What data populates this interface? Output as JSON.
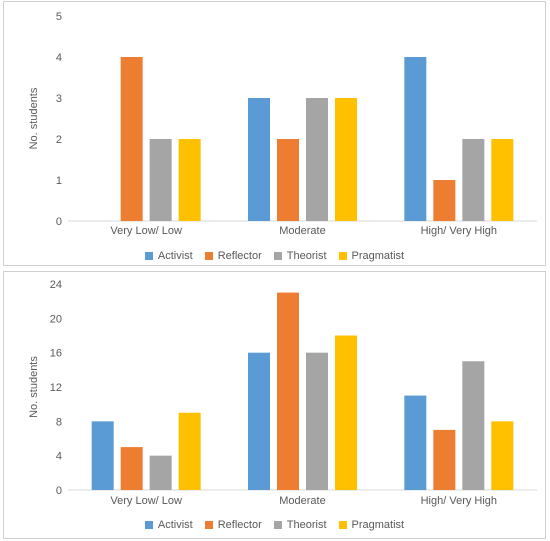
{
  "chart_data": [
    {
      "type": "bar",
      "ylabel": "No. students",
      "xlabel": "",
      "categories": [
        "Very Low/ Low",
        "Moderate",
        "High/ Very High"
      ],
      "ylim": [
        0,
        5
      ],
      "yticks": [
        0,
        1,
        2,
        3,
        4,
        5
      ],
      "grid": false,
      "legend": "bottom",
      "series": [
        {
          "name": "Activist",
          "values": [
            0,
            3,
            4
          ]
        },
        {
          "name": "Reflector",
          "values": [
            4,
            2,
            1
          ]
        },
        {
          "name": "Theorist",
          "values": [
            2,
            3,
            2
          ]
        },
        {
          "name": "Pragmatist",
          "values": [
            2,
            3,
            2
          ]
        }
      ]
    },
    {
      "type": "bar",
      "ylabel": "No. students",
      "xlabel": "",
      "categories": [
        "Very Low/ Low",
        "Moderate",
        "High/ Very High"
      ],
      "ylim": [
        0,
        24
      ],
      "yticks": [
        0,
        4,
        8,
        12,
        16,
        20,
        24
      ],
      "grid": false,
      "legend": "bottom",
      "series": [
        {
          "name": "Activist",
          "values": [
            8,
            16,
            11
          ]
        },
        {
          "name": "Reflector",
          "values": [
            5,
            23,
            7
          ]
        },
        {
          "name": "Theorist",
          "values": [
            4,
            16,
            15
          ]
        },
        {
          "name": "Pragmatist",
          "values": [
            9,
            18,
            8
          ]
        }
      ]
    }
  ],
  "colors": {
    "Activist": "#5B9BD5",
    "Reflector": "#ED7D31",
    "Theorist": "#A5A5A5",
    "Pragmatist": "#FFC000",
    "axis": "#d9d9d9",
    "text": "#595959"
  }
}
